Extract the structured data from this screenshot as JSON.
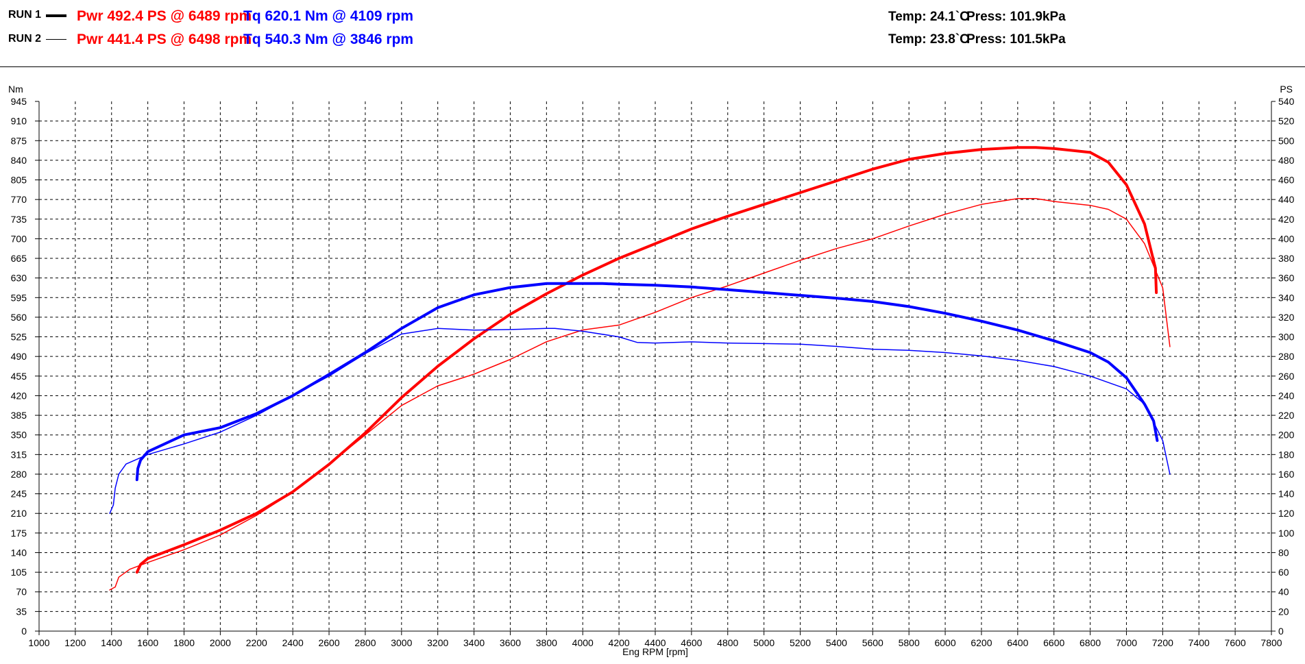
{
  "header": {
    "runs": [
      {
        "label": "RUN 1",
        "power": "Pwr  492.4 PS @ 6489 rpm",
        "torque": "Tq 620.1 Nm @ 4109 rpm",
        "temp": "Temp: 24.1`C",
        "press": "Press: 101.9kPa",
        "line_style": "thick"
      },
      {
        "label": "RUN 2",
        "power": "Pwr  441.4 PS @ 6498 rpm",
        "torque": "Tq 540.3 Nm @ 3846 rpm",
        "temp": "Temp: 23.8`C",
        "press": "Press: 101.5kPa",
        "line_style": "thin"
      }
    ]
  },
  "colors": {
    "power": "#ff0000",
    "torque": "#0000ff",
    "grid": "#000000",
    "background": "#ffffff"
  },
  "chart_data": {
    "type": "line",
    "title": "",
    "xlabel": "Eng RPM [rpm]",
    "ylabel": "Nm",
    "y2label": "PS",
    "xlim": [
      1000,
      7800
    ],
    "ylim": [
      0,
      945
    ],
    "y2lim": [
      0,
      540
    ],
    "x_ticks": [
      1000,
      1200,
      1400,
      1600,
      1800,
      2000,
      2200,
      2400,
      2600,
      2800,
      3000,
      3200,
      3400,
      3600,
      3800,
      4000,
      4200,
      4400,
      4600,
      4800,
      5000,
      5200,
      5400,
      5600,
      5800,
      6000,
      6200,
      6400,
      6600,
      6800,
      7000,
      7200,
      7400,
      7600,
      7800
    ],
    "y_ticks": [
      0,
      35,
      70,
      105,
      140,
      175,
      210,
      245,
      280,
      315,
      350,
      385,
      420,
      455,
      490,
      525,
      560,
      595,
      630,
      665,
      700,
      735,
      770,
      805,
      840,
      875,
      910,
      945
    ],
    "y2_ticks": [
      0,
      20,
      40,
      60,
      80,
      100,
      120,
      140,
      160,
      180,
      200,
      220,
      240,
      260,
      280,
      300,
      320,
      340,
      360,
      380,
      400,
      420,
      440,
      460,
      480,
      500,
      520,
      540
    ],
    "grid": true,
    "series": [
      {
        "run": "RUN 1",
        "quantity": "power",
        "axis": "right",
        "color": "#ff0000",
        "width": 4,
        "points": [
          [
            1540,
            60
          ],
          [
            1560,
            68
          ],
          [
            1600,
            74
          ],
          [
            1800,
            88
          ],
          [
            2000,
            103
          ],
          [
            2200,
            120
          ],
          [
            2400,
            142
          ],
          [
            2600,
            170
          ],
          [
            2800,
            202
          ],
          [
            3000,
            238
          ],
          [
            3200,
            270
          ],
          [
            3400,
            298
          ],
          [
            3600,
            323
          ],
          [
            3800,
            344
          ],
          [
            4000,
            363
          ],
          [
            4200,
            380
          ],
          [
            4400,
            395
          ],
          [
            4600,
            410
          ],
          [
            4800,
            423
          ],
          [
            5000,
            435
          ],
          [
            5200,
            447
          ],
          [
            5400,
            459
          ],
          [
            5600,
            471
          ],
          [
            5800,
            481
          ],
          [
            6000,
            487
          ],
          [
            6200,
            491
          ],
          [
            6400,
            493
          ],
          [
            6500,
            493
          ],
          [
            6600,
            492
          ],
          [
            6800,
            488
          ],
          [
            6900,
            478
          ],
          [
            7000,
            455
          ],
          [
            7100,
            415
          ],
          [
            7160,
            370
          ],
          [
            7165,
            345
          ]
        ]
      },
      {
        "run": "RUN 2",
        "quantity": "power",
        "axis": "right",
        "color": "#ff0000",
        "width": 1.5,
        "points": [
          [
            1390,
            42
          ],
          [
            1420,
            45
          ],
          [
            1440,
            55
          ],
          [
            1500,
            63
          ],
          [
            1600,
            70
          ],
          [
            1800,
            83
          ],
          [
            2000,
            98
          ],
          [
            2200,
            118
          ],
          [
            2400,
            142
          ],
          [
            2600,
            170
          ],
          [
            2800,
            200
          ],
          [
            3000,
            230
          ],
          [
            3200,
            250
          ],
          [
            3400,
            262
          ],
          [
            3600,
            277
          ],
          [
            3800,
            295
          ],
          [
            4000,
            307
          ],
          [
            4200,
            312
          ],
          [
            4400,
            325
          ],
          [
            4600,
            340
          ],
          [
            4800,
            352
          ],
          [
            5000,
            365
          ],
          [
            5200,
            378
          ],
          [
            5400,
            390
          ],
          [
            5600,
            400
          ],
          [
            5800,
            413
          ],
          [
            6000,
            425
          ],
          [
            6200,
            435
          ],
          [
            6400,
            441
          ],
          [
            6500,
            441
          ],
          [
            6600,
            438
          ],
          [
            6800,
            434
          ],
          [
            6900,
            430
          ],
          [
            7000,
            420
          ],
          [
            7100,
            395
          ],
          [
            7200,
            350
          ],
          [
            7240,
            290
          ]
        ]
      },
      {
        "run": "RUN 1",
        "quantity": "torque",
        "axis": "left",
        "color": "#0000ff",
        "width": 4,
        "points": [
          [
            1540,
            270
          ],
          [
            1545,
            290
          ],
          [
            1560,
            305
          ],
          [
            1600,
            320
          ],
          [
            1800,
            350
          ],
          [
            2000,
            363
          ],
          [
            2200,
            388
          ],
          [
            2400,
            420
          ],
          [
            2600,
            458
          ],
          [
            2800,
            497
          ],
          [
            3000,
            540
          ],
          [
            3200,
            577
          ],
          [
            3400,
            600
          ],
          [
            3600,
            613
          ],
          [
            3800,
            620
          ],
          [
            4000,
            620
          ],
          [
            4109,
            620
          ],
          [
            4200,
            619
          ],
          [
            4400,
            617
          ],
          [
            4600,
            614
          ],
          [
            4800,
            609
          ],
          [
            5000,
            604
          ],
          [
            5200,
            599
          ],
          [
            5400,
            594
          ],
          [
            5600,
            588
          ],
          [
            5800,
            579
          ],
          [
            6000,
            567
          ],
          [
            6200,
            553
          ],
          [
            6400,
            537
          ],
          [
            6600,
            518
          ],
          [
            6800,
            497
          ],
          [
            6900,
            480
          ],
          [
            7000,
            452
          ],
          [
            7100,
            405
          ],
          [
            7150,
            375
          ],
          [
            7170,
            340
          ]
        ]
      },
      {
        "run": "RUN 2",
        "quantity": "torque",
        "axis": "left",
        "color": "#0000ff",
        "width": 1.5,
        "points": [
          [
            1390,
            210
          ],
          [
            1410,
            225
          ],
          [
            1420,
            255
          ],
          [
            1440,
            280
          ],
          [
            1480,
            298
          ],
          [
            1600,
            315
          ],
          [
            1800,
            334
          ],
          [
            2000,
            355
          ],
          [
            2200,
            385
          ],
          [
            2400,
            420
          ],
          [
            2600,
            455
          ],
          [
            2800,
            495
          ],
          [
            3000,
            530
          ],
          [
            3200,
            540
          ],
          [
            3400,
            537
          ],
          [
            3600,
            538
          ],
          [
            3800,
            540
          ],
          [
            3846,
            540
          ],
          [
            4000,
            535
          ],
          [
            4200,
            525
          ],
          [
            4300,
            515
          ],
          [
            4400,
            514
          ],
          [
            4600,
            516
          ],
          [
            4800,
            514
          ],
          [
            5000,
            513
          ],
          [
            5200,
            512
          ],
          [
            5400,
            508
          ],
          [
            5600,
            503
          ],
          [
            5800,
            501
          ],
          [
            6000,
            497
          ],
          [
            6200,
            491
          ],
          [
            6400,
            483
          ],
          [
            6600,
            472
          ],
          [
            6800,
            455
          ],
          [
            7000,
            432
          ],
          [
            7100,
            405
          ],
          [
            7200,
            340
          ],
          [
            7240,
            280
          ]
        ]
      }
    ]
  }
}
